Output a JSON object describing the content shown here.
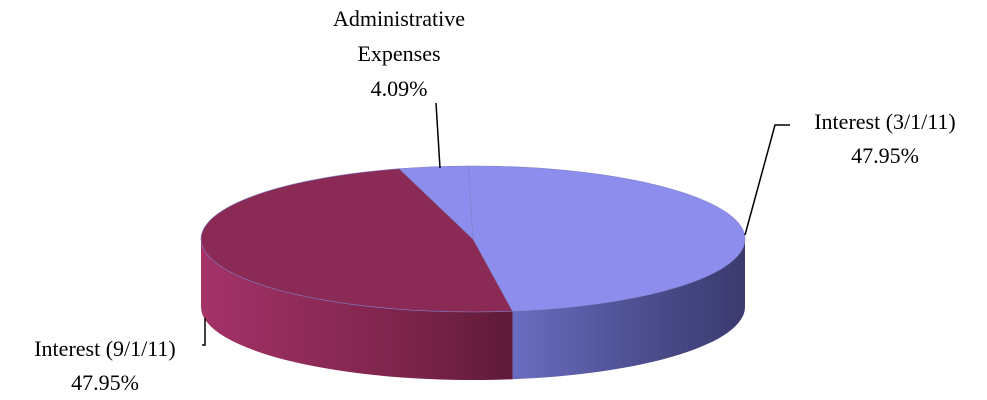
{
  "chart_data": {
    "type": "pie",
    "style": "3d",
    "title": "",
    "slices": [
      {
        "name": "Interest (3/1/11)",
        "value": 47.95,
        "label": "47.95%",
        "color": "#8c8ded",
        "side_color": "#5a5ca8"
      },
      {
        "name": "Interest (9/1/11)",
        "value": 47.95,
        "label": "47.95%",
        "color": "#8b2a55",
        "side_color": "#6e1f43"
      },
      {
        "name": "Administrative Expenses",
        "value": 4.09,
        "label": "4.09%",
        "color": "#8c8ded",
        "side_color": "#5a5ca8"
      }
    ],
    "labels": {
      "interest_march": {
        "line1": "Interest (3/1/11)",
        "line2": "47.95%"
      },
      "interest_sept": {
        "line1": "Interest (9/1/11)",
        "line2": "47.95%"
      },
      "admin": {
        "line1": "Administrative",
        "line2": "Expenses",
        "line3": "4.09%"
      }
    },
    "legend": "none"
  }
}
